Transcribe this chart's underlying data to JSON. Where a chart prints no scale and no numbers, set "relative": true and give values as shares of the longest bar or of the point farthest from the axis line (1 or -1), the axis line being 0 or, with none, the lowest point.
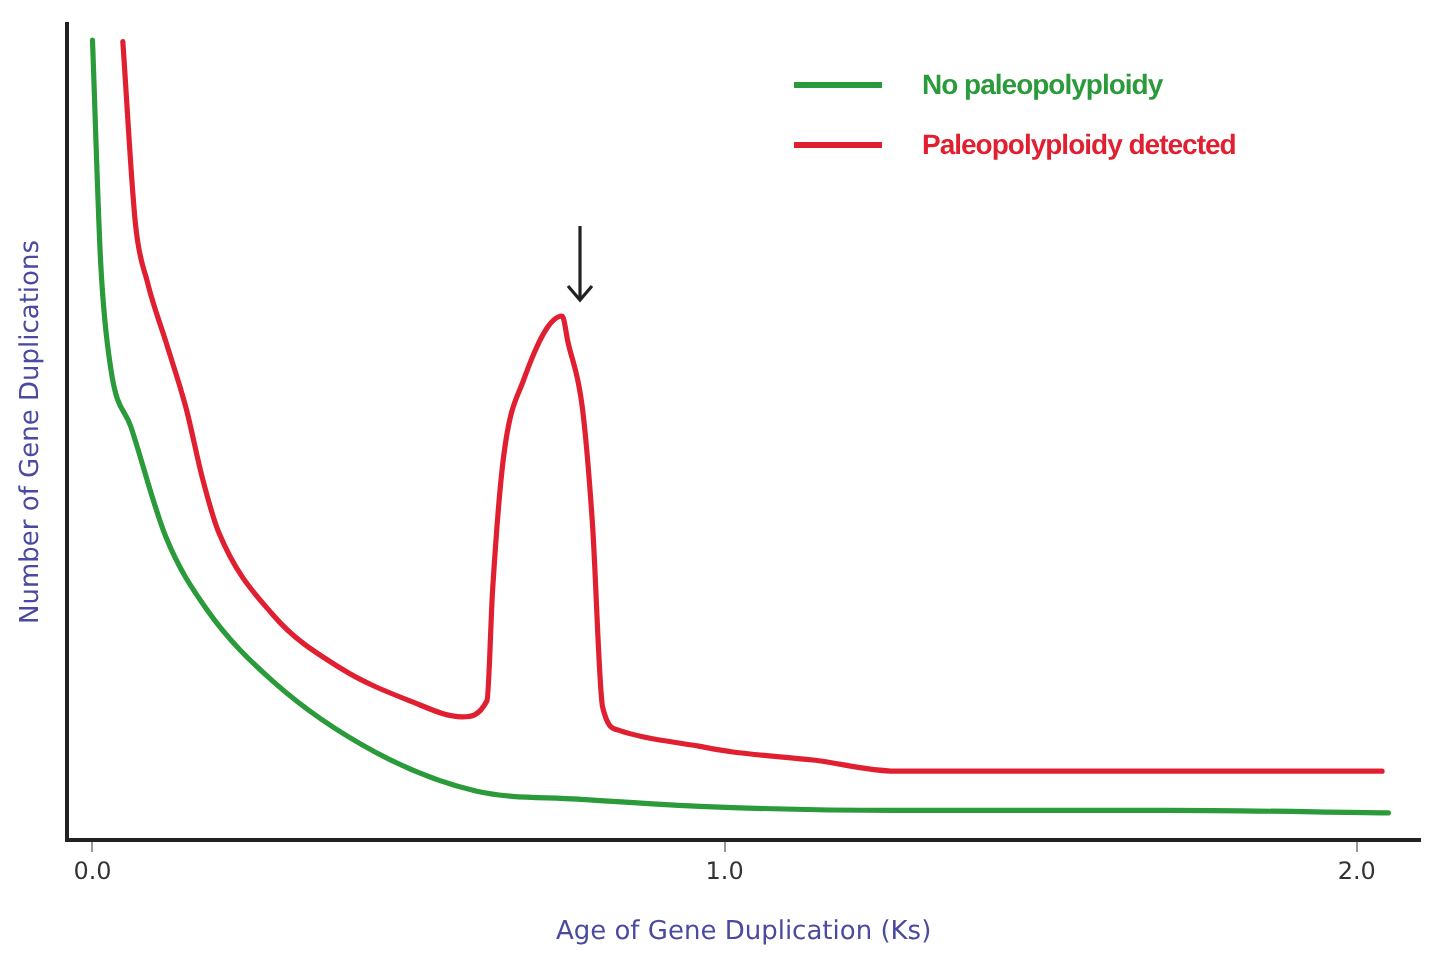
{
  "chart_data": {
    "type": "line",
    "xlabel": "Age of Gene Duplication (Ks)",
    "ylabel": "Number of Gene Duplications",
    "relative": true,
    "xlim": [
      -0.04,
      2.1
    ],
    "xticks": [
      {
        "value": 0,
        "label": "0.0"
      },
      {
        "value": 1,
        "label": "1.0"
      },
      {
        "value": 2,
        "label": "2.0"
      }
    ],
    "grid": false,
    "legend": "top right",
    "marker": "none",
    "series": [
      {
        "name": "No paleopolyploidy",
        "color": "#2a9a3a",
        "x": [
          0.0,
          0.013,
          0.029,
          0.061,
          0.116,
          0.18,
          0.286,
          0.447,
          0.608,
          0.768,
          0.961,
          1.27,
          1.7,
          2.05
        ],
        "values": [
          1.0,
          0.721,
          0.589,
          0.516,
          0.379,
          0.289,
          0.198,
          0.11,
          0.061,
          0.051,
          0.042,
          0.037,
          0.037,
          0.034
        ]
      },
      {
        "name": "Paleopolyploidy detected",
        "color": "#e02030",
        "x": [
          0.048,
          0.068,
          0.087,
          0.116,
          0.148,
          0.174,
          0.199,
          0.286,
          0.392,
          0.502,
          0.585,
          0.624,
          0.633,
          0.65,
          0.682,
          0.743,
          0.752,
          0.775,
          0.791,
          0.807,
          0.833,
          0.961,
          1.013,
          1.14,
          1.27,
          1.49,
          2.04
        ],
        "values": [
          0.998,
          0.77,
          0.697,
          0.623,
          0.54,
          0.452,
          0.386,
          0.281,
          0.215,
          0.174,
          0.154,
          0.174,
          0.313,
          0.477,
          0.575,
          0.655,
          0.623,
          0.54,
          0.394,
          0.166,
          0.137,
          0.117,
          0.11,
          0.1,
          0.086,
          0.086,
          0.086
        ]
      }
    ]
  }
}
